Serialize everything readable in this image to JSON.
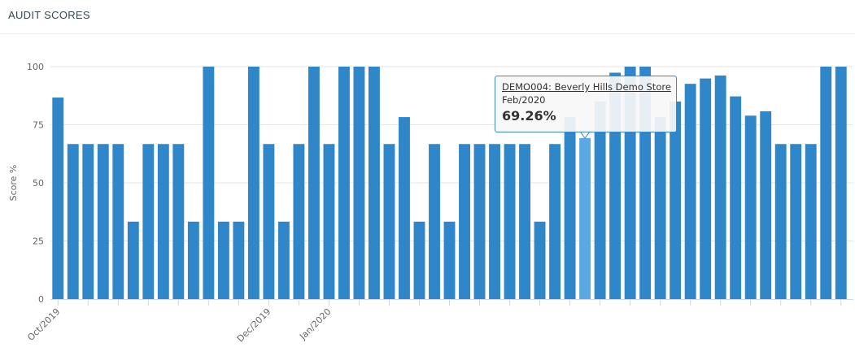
{
  "panel": {
    "title": "AUDIT SCORES"
  },
  "tooltip": {
    "store": "DEMO004: Beverly Hills Demo Store",
    "period": "Feb/2020",
    "value": "69.26%"
  },
  "colors": {
    "bar": "#2f86c8",
    "bar_highlight": "#5aa8e4",
    "grid": "#e6e6e6",
    "axis": "#ccd6eb"
  },
  "chart_data": {
    "type": "bar",
    "title": "",
    "xlabel": "",
    "ylabel": "Score %",
    "ylim": [
      0,
      100
    ],
    "yticks": [
      0,
      25,
      50,
      75,
      100
    ],
    "grid": true,
    "highlight_index": 35,
    "x_tick_labels": [
      {
        "index": 0,
        "label": "Oct/2019"
      },
      {
        "index": 14,
        "label": "Dec/2019"
      },
      {
        "index": 18,
        "label": "Jan/2020"
      }
    ],
    "values": [
      86.7,
      66.7,
      66.7,
      66.7,
      66.7,
      33.3,
      66.7,
      66.7,
      66.7,
      33.3,
      100,
      33.3,
      33.3,
      100,
      66.7,
      33.3,
      66.7,
      100,
      66.7,
      100,
      100,
      100,
      66.7,
      78.3,
      33.3,
      66.7,
      33.3,
      66.7,
      66.7,
      66.7,
      66.7,
      66.7,
      33.3,
      66.7,
      78.3,
      69.26,
      85,
      97.4,
      100,
      100,
      78.3,
      85,
      92.6,
      94.9,
      96.2,
      87.2,
      78.9,
      80.8,
      66.7,
      66.7,
      66.7,
      100,
      100
    ]
  }
}
